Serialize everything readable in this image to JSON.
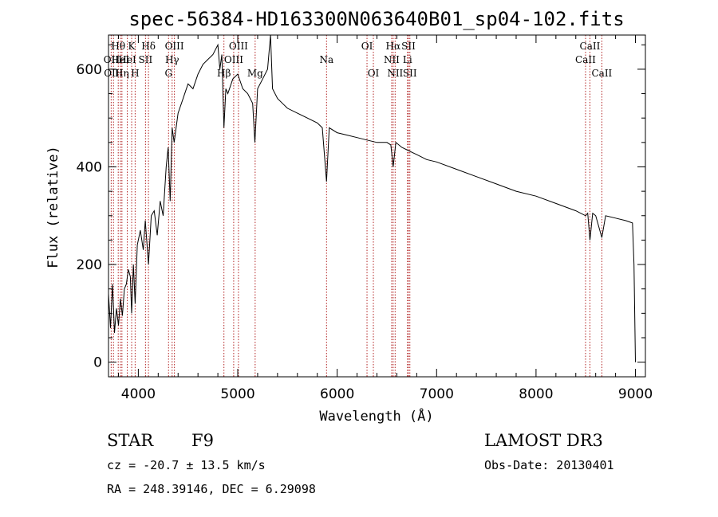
{
  "title": "spec-56384-HD163300N063640B01_sp04-102.fits",
  "info": {
    "class_label": "STAR",
    "subclass_label": "F9",
    "survey": "LAMOST DR3",
    "cz": "cz = -20.7 ± 13.5 km/s",
    "obs_date": "Obs-Date: 20130401",
    "coords": "RA = 248.39146, DEC =    6.29098"
  },
  "chart_data": {
    "type": "line",
    "title": "spec-56384-HD163300N063640B01_sp04-102.fits",
    "xlabel": "Wavelength (Å)",
    "ylabel": "Flux (relative)",
    "xlim": [
      3700,
      9100
    ],
    "ylim": [
      -30,
      670
    ],
    "x_ticks": [
      4000,
      5000,
      6000,
      7000,
      8000,
      9000
    ],
    "y_ticks": [
      0,
      200,
      400,
      600
    ],
    "grid": false,
    "line_color": "#000000",
    "marker_color": "#b22222",
    "series": [
      {
        "name": "flux",
        "x": [
          3700,
          3720,
          3740,
          3760,
          3780,
          3800,
          3820,
          3840,
          3860,
          3880,
          3900,
          3920,
          3933,
          3950,
          3968,
          3990,
          4020,
          4050,
          4070,
          4102,
          4130,
          4160,
          4190,
          4220,
          4250,
          4280,
          4300,
          4320,
          4340,
          4360,
          4400,
          4450,
          4500,
          4550,
          4600,
          4650,
          4700,
          4750,
          4800,
          4820,
          4840,
          4861,
          4880,
          4900,
          4950,
          5000,
          5050,
          5100,
          5150,
          5172,
          5200,
          5250,
          5300,
          5330,
          5350,
          5400,
          5450,
          5500,
          5600,
          5700,
          5800,
          5850,
          5893,
          5920,
          6000,
          6100,
          6200,
          6300,
          6400,
          6500,
          6540,
          6563,
          6590,
          6650,
          6700,
          6750,
          6800,
          6900,
          7000,
          7200,
          7400,
          7600,
          7800,
          8000,
          8200,
          8400,
          8498,
          8520,
          8542,
          8570,
          8600,
          8662,
          8700,
          8800,
          8900,
          8970,
          8985,
          9000
        ],
        "y": [
          140,
          70,
          160,
          60,
          110,
          75,
          130,
          95,
          150,
          160,
          190,
          175,
          100,
          200,
          120,
          240,
          270,
          230,
          290,
          200,
          300,
          310,
          260,
          330,
          300,
          400,
          440,
          330,
          480,
          450,
          510,
          540,
          570,
          560,
          590,
          610,
          620,
          630,
          650,
          600,
          630,
          480,
          560,
          550,
          580,
          590,
          560,
          550,
          530,
          450,
          560,
          580,
          600,
          680,
          560,
          540,
          530,
          520,
          510,
          500,
          490,
          480,
          370,
          480,
          470,
          465,
          460,
          455,
          450,
          450,
          445,
          400,
          450,
          440,
          435,
          430,
          425,
          415,
          410,
          395,
          380,
          365,
          350,
          340,
          325,
          310,
          300,
          305,
          250,
          305,
          300,
          255,
          300,
          295,
          290,
          285,
          200,
          0
        ]
      }
    ],
    "line_markers": [
      {
        "wl": 3727,
        "label": "OII",
        "row": 1
      },
      {
        "wl": 3750,
        "label": "OIII",
        "row": 2
      },
      {
        "wl": 3798,
        "label": "Hθ",
        "row": 0
      },
      {
        "wl": 3820,
        "label": "HeI",
        "row": 1
      },
      {
        "wl": 3835,
        "label": "Hη",
        "row": 2
      },
      {
        "wl": 3889,
        "label": "HeI",
        "row": 1
      },
      {
        "wl": 3933,
        "label": "K",
        "row": 0
      },
      {
        "wl": 3968,
        "label": "H",
        "row": 2
      },
      {
        "wl": 4072,
        "label": "SII",
        "row": 1
      },
      {
        "wl": 4102,
        "label": "Hδ",
        "row": 0
      },
      {
        "wl": 4304,
        "label": "G",
        "row": 2
      },
      {
        "wl": 4340,
        "label": "Hγ",
        "row": 1
      },
      {
        "wl": 4363,
        "label": "OIII",
        "row": 0
      },
      {
        "wl": 4861,
        "label": "Hβ",
        "row": 2
      },
      {
        "wl": 4959,
        "label": "OIII",
        "row": 1
      },
      {
        "wl": 5007,
        "label": "OIII",
        "row": 0
      },
      {
        "wl": 5175,
        "label": "Mg",
        "row": 2
      },
      {
        "wl": 5893,
        "label": "Na",
        "row": 1
      },
      {
        "wl": 6300,
        "label": "OI",
        "row": 0
      },
      {
        "wl": 6364,
        "label": "OI",
        "row": 2
      },
      {
        "wl": 6548,
        "label": "NII",
        "row": 1
      },
      {
        "wl": 6563,
        "label": "Hα",
        "row": 0
      },
      {
        "wl": 6583,
        "label": "NII",
        "row": 2
      },
      {
        "wl": 6707,
        "label": "Li",
        "row": 1
      },
      {
        "wl": 6717,
        "label": "SII",
        "row": 0
      },
      {
        "wl": 6731,
        "label": "SII",
        "row": 2
      },
      {
        "wl": 8498,
        "label": "CaII",
        "row": 1
      },
      {
        "wl": 8542,
        "label": "CaII",
        "row": 0
      },
      {
        "wl": 8662,
        "label": "CaII",
        "row": 2
      }
    ]
  }
}
